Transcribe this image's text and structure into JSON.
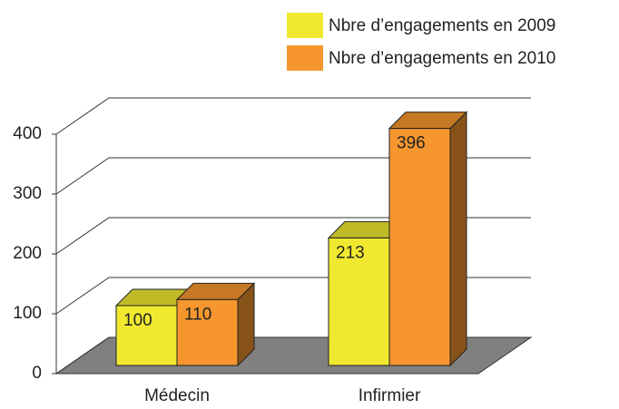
{
  "chart_data": {
    "type": "bar3d",
    "categories": [
      "Médecin",
      "Infirmier"
    ],
    "series": [
      {
        "name": "Nbre d’engagements en 2009",
        "color": "#f0e930",
        "values": [
          100,
          213
        ]
      },
      {
        "name": "Nbre d’engagements en 2010",
        "color": "#f7962e",
        "values": [
          110,
          396
        ]
      }
    ],
    "ylim": [
      0,
      400
    ],
    "yticks": [
      0,
      100,
      200,
      300,
      400
    ],
    "grid": true,
    "legend": "top-right"
  }
}
